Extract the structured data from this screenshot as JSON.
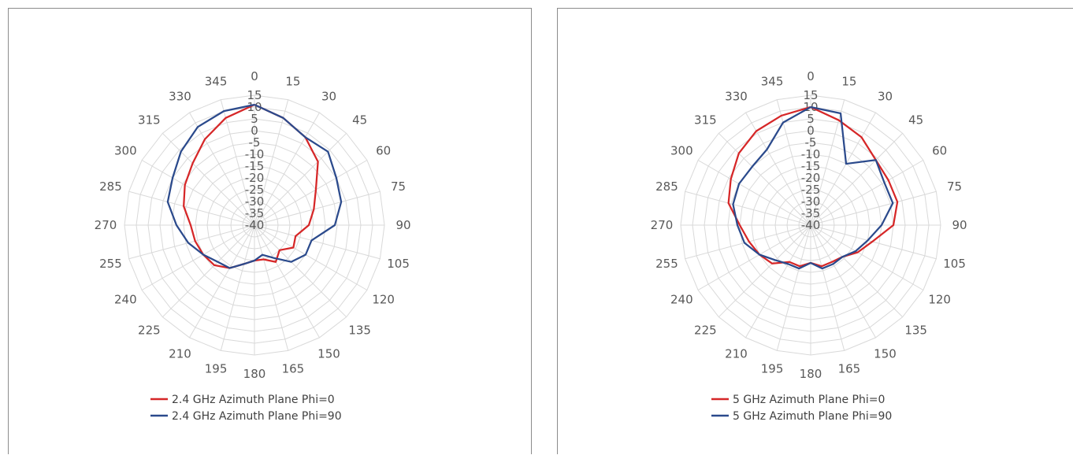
{
  "chart_data": [
    {
      "type": "radar",
      "title": "",
      "angles": [
        0,
        15,
        30,
        45,
        60,
        75,
        90,
        105,
        120,
        135,
        150,
        165,
        180,
        195,
        210,
        225,
        240,
        255,
        270,
        285,
        300,
        315,
        330,
        345
      ],
      "radial_ticks": [
        15,
        10,
        5,
        0,
        -5,
        -10,
        -15,
        -20,
        -25,
        -30,
        -35,
        -40
      ],
      "rlim": [
        -40,
        15
      ],
      "grid": true,
      "legend": "bottom",
      "series": [
        {
          "name": "2.4 GHz Azimuth Plane Phi=0",
          "color": "#d62728",
          "values": [
            11,
            7,
            3,
            -2,
            -10,
            -14,
            -17,
            -22,
            -21,
            -25,
            -22,
            -25,
            -25,
            -23,
            -19,
            -16,
            -15,
            -14,
            -13,
            -9,
            -6,
            -3,
            2,
            7
          ]
        },
        {
          "name": "2.4 GHz Azimuth Plane Phi=90",
          "color": "#2b4a8c",
          "values": [
            11,
            7,
            3,
            4,
            0,
            -2,
            -6,
            -15,
            -15,
            -18,
            -24,
            -27,
            -25,
            -23,
            -19,
            -18,
            -15,
            -11,
            -7,
            -2,
            0,
            4,
            8,
            10
          ]
        }
      ]
    },
    {
      "type": "radar",
      "title": "",
      "angles": [
        0,
        15,
        30,
        45,
        60,
        75,
        90,
        105,
        120,
        135,
        150,
        165,
        180,
        195,
        210,
        225,
        240,
        255,
        270,
        285,
        300,
        315,
        330,
        345
      ],
      "radial_ticks": [
        15,
        10,
        5,
        0,
        -5,
        -10,
        -15,
        -20,
        -25,
        -30,
        -35,
        -40
      ],
      "rlim": [
        -40,
        15
      ],
      "grid": true,
      "legend": "bottom",
      "series": [
        {
          "name": "5 GHz Azimuth Plane Phi=0",
          "color": "#d62728",
          "values": [
            10,
            6,
            3,
            -1,
            -2,
            -2,
            -5,
            -13,
            -17,
            -21,
            -22,
            -22,
            -24,
            -22,
            -22,
            -17,
            -15,
            -13,
            -10,
            -4,
            -1,
            3,
            6,
            8
          ]
        },
        {
          "name": "5 GHz Azimuth Plane Phi=90",
          "color": "#2b4a8c",
          "values": [
            10,
            9,
            -10,
            -1,
            -4,
            -4,
            -10,
            -15,
            -18,
            -21,
            -21,
            -21,
            -24,
            -21,
            -21,
            -19,
            -15,
            -11,
            -9,
            -6,
            -5,
            -5,
            -3,
            5
          ]
        }
      ]
    }
  ]
}
